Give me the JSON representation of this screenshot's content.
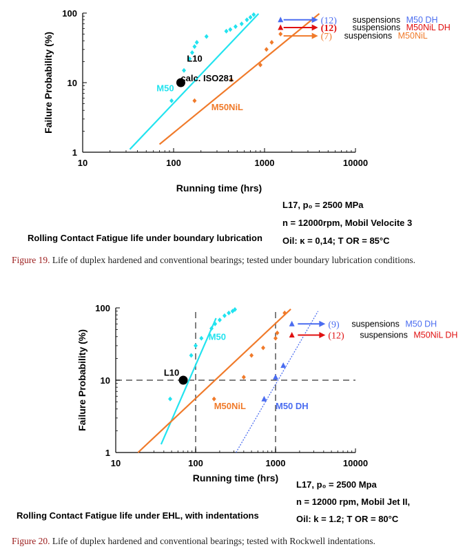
{
  "figures": [
    {
      "caption_label": "Figure 19.",
      "caption_text": " Life of duplex hardened and conventional bearings; tested under boundary lubrication conditions.",
      "chart_label": "Rolling Contact Fatigue life under boundary lubrication",
      "test_conditions": [
        "L17, p₀ = 2500 MPa",
        "n = 12000rpm, Mobil Velocite 3",
        "Oil: κ = 0,14; T OR = 85°C"
      ]
    },
    {
      "caption_label": "Figure 20.",
      "caption_text": " Life of duplex hardened and conventional bearings; tested with Rockwell indentations.",
      "chart_label": "Rolling Contact Fatigue life under EHL, with indentations",
      "test_conditions": [
        "L17, p₀ = 2500 Mpa",
        "n = 12000 rpm, Mobil Jet II,",
        "Oil: k = 1.2; T OR = 80°C"
      ]
    }
  ],
  "colors": {
    "m50": "#22e3ef",
    "m50nil": "#f07a2a",
    "m50dh": "#4a6cf0",
    "red": "#e01010",
    "caption_label": "#9b1c1c",
    "axis": "#000000",
    "dash": "#555555"
  },
  "chart_data": [
    {
      "type": "scatter",
      "xscale": "log",
      "yscale": "log",
      "xlabel": "Running time (hrs)",
      "ylabel": "Failure Probability (%)",
      "xlim": [
        10,
        10000
      ],
      "ylim": [
        1,
        100
      ],
      "x_ticks": [
        "10",
        "100",
        "1000",
        "10000"
      ],
      "y_ticks": [
        "1",
        "10",
        "100"
      ],
      "grid": false,
      "series": [
        {
          "name": "M50",
          "color": "#22e3ef",
          "marker": "diamond",
          "points": [
            [
              95,
              5.5
            ],
            [
              130,
              15
            ],
            [
              150,
              22
            ],
            [
              160,
              27
            ],
            [
              170,
              33
            ],
            [
              180,
              38
            ],
            [
              230,
              46
            ],
            [
              380,
              55
            ],
            [
              420,
              58
            ],
            [
              480,
              64
            ],
            [
              560,
              70
            ],
            [
              640,
              80
            ],
            [
              700,
              87
            ],
            [
              760,
              95
            ]
          ],
          "fit": [
            [
              33,
              1.1
            ],
            [
              860,
              98
            ]
          ]
        },
        {
          "name": "M50NiL",
          "color": "#f07a2a",
          "marker": "diamond",
          "points": [
            [
              170,
              5.5
            ],
            [
              430,
              11
            ],
            [
              900,
              18
            ],
            [
              1050,
              30
            ],
            [
              1200,
              38
            ],
            [
              1500,
              50
            ]
          ],
          "fit": [
            [
              70,
              1.3
            ],
            [
              4000,
              98
            ]
          ]
        }
      ],
      "suspensions": [
        {
          "x": 1500,
          "y": 80,
          "count": "(12)",
          "label": "suspensions",
          "series": "M50 DH",
          "color": "#4a6cf0",
          "marker": "triangle"
        },
        {
          "x": 1500,
          "y": 62,
          "count": "(12)",
          "label": "suspensions",
          "series": "M50NiL DH",
          "color": "#e01010",
          "marker": "triangle"
        },
        {
          "x": 1500,
          "y": 47,
          "count": "(7)",
          "label": "suspensions",
          "series": "M50NiL",
          "color": "#f07a2a",
          "marker": "none"
        }
      ],
      "annotations": [
        {
          "text": "L10",
          "x": 140,
          "y": 20
        },
        {
          "text": "calc. ISO281",
          "x": 120,
          "y": 10.5
        },
        {
          "text": "M50",
          "x": 65,
          "y": 7.5,
          "color": "#22e3ef"
        },
        {
          "text": "M50NiL",
          "x": 260,
          "y": 4.0,
          "color": "#f07a2a"
        }
      ],
      "l10_point": [
        120,
        10
      ]
    },
    {
      "type": "scatter",
      "xscale": "log",
      "yscale": "log",
      "xlabel": "Running time (hrs)",
      "ylabel": "Failure Probability (%)",
      "xlim": [
        10,
        10000
      ],
      "ylim": [
        1,
        100
      ],
      "x_ticks": [
        "10",
        "100",
        "1000",
        "10000"
      ],
      "y_ticks": [
        "1",
        "10",
        "100"
      ],
      "grid": false,
      "reference_lines": {
        "x": [
          100,
          1000
        ],
        "y": [
          10
        ]
      },
      "series": [
        {
          "name": "M50",
          "color": "#22e3ef",
          "marker": "diamond",
          "points": [
            [
              48,
              5.5
            ],
            [
              88,
              22
            ],
            [
              100,
              30
            ],
            [
              118,
              38
            ],
            [
              158,
              52
            ],
            [
              175,
              60
            ],
            [
              200,
              68
            ],
            [
              230,
              78
            ],
            [
              260,
              85
            ],
            [
              290,
              90
            ],
            [
              310,
              95
            ]
          ],
          "fit": [
            [
              37,
              1.3
            ],
            [
              180,
              72
            ]
          ]
        },
        {
          "name": "M50NiL",
          "color": "#f07a2a",
          "marker": "diamond",
          "points": [
            [
              170,
              5.5
            ],
            [
              400,
              11
            ],
            [
              500,
              22
            ],
            [
              700,
              28
            ],
            [
              1000,
              38
            ],
            [
              1050,
              45
            ],
            [
              1300,
              85
            ]
          ],
          "fit": [
            [
              19,
              1.0
            ],
            [
              1550,
              96
            ]
          ]
        },
        {
          "name": "M50 DH",
          "color": "#4a6cf0",
          "marker": "triangle",
          "points": [
            [
              720,
              5.5
            ],
            [
              1000,
              11
            ],
            [
              1250,
              16
            ]
          ],
          "fit": [
            [
              320,
              1.0
            ],
            [
              3400,
              90
            ]
          ],
          "fit_style": "dotted"
        }
      ],
      "suspensions": [
        {
          "x": 1600,
          "y": 60,
          "count": "(9)",
          "label": "suspensions",
          "series": "M50 DH",
          "color": "#4a6cf0",
          "marker": "triangle"
        },
        {
          "x": 1600,
          "y": 42,
          "count": "(12)",
          "label": "suspensions",
          "series": "M50NiL DH",
          "color": "#e01010",
          "marker": "triangle"
        }
      ],
      "annotations": [
        {
          "text": "L10",
          "x": 40,
          "y": 11.5
        },
        {
          "text": "M50",
          "x": 145,
          "y": 36,
          "color": "#22e3ef"
        },
        {
          "text": "M50NiL",
          "x": 170,
          "y": 4.0,
          "color": "#f07a2a"
        },
        {
          "text": "M50 DH",
          "x": 1000,
          "y": 4.0,
          "color": "#4a6cf0"
        }
      ],
      "l10_point": [
        70,
        10
      ]
    }
  ]
}
